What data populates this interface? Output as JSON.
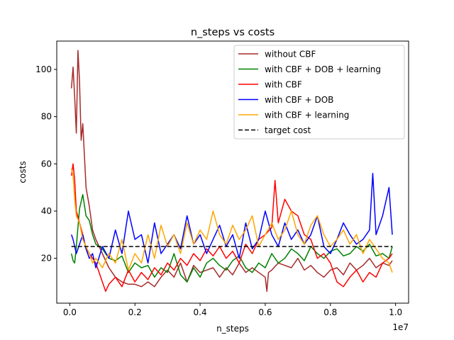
{
  "chart_data": {
    "type": "line",
    "title": "n_steps vs costs",
    "xlabel": "n_steps",
    "ylabel": "costs",
    "x_offset_text": "1e7",
    "xlim": [
      -0.04,
      1.04
    ],
    "ylim": [
      1,
      112
    ],
    "x_ticks": [
      0.0,
      0.2,
      0.4,
      0.6,
      0.8,
      1.0
    ],
    "x_tick_labels": [
      "0.0",
      "0.2",
      "0.4",
      "0.6",
      "0.8",
      "1.0"
    ],
    "y_ticks": [
      20,
      40,
      60,
      80,
      100
    ],
    "y_tick_labels": [
      "20",
      "40",
      "60",
      "80",
      "100"
    ],
    "grid": false,
    "legend_position": "top-right",
    "series": [
      {
        "name": "without CBF",
        "color": "#a52a2a",
        "x": [
          0.005,
          0.01,
          0.015,
          0.02,
          0.025,
          0.03,
          0.035,
          0.04,
          0.05,
          0.06,
          0.07,
          0.08,
          0.1,
          0.12,
          0.14,
          0.16,
          0.18,
          0.2,
          0.22,
          0.24,
          0.26,
          0.28,
          0.3,
          0.32,
          0.34,
          0.36,
          0.38,
          0.4,
          0.42,
          0.44,
          0.46,
          0.48,
          0.5,
          0.52,
          0.54,
          0.56,
          0.58,
          0.6,
          0.605,
          0.61,
          0.62,
          0.64,
          0.66,
          0.68,
          0.7,
          0.72,
          0.74,
          0.76,
          0.78,
          0.8,
          0.82,
          0.84,
          0.86,
          0.88,
          0.9,
          0.92,
          0.94,
          0.96,
          0.98,
          0.99
        ],
        "y": [
          92,
          101,
          88,
          73,
          108,
          95,
          70,
          77,
          50,
          42,
          32,
          28,
          22,
          16,
          12,
          10,
          9,
          9,
          8,
          10,
          8,
          12,
          15,
          12,
          18,
          10,
          17,
          14,
          15,
          16,
          12,
          16,
          13,
          18,
          14,
          16,
          14,
          12,
          6,
          14,
          15,
          18,
          17,
          16,
          20,
          15,
          17,
          14,
          12,
          15,
          16,
          13,
          18,
          15,
          17,
          20,
          16,
          18,
          17,
          19
        ]
      },
      {
        "name": "with CBF + DOB + learning",
        "color": "#008000",
        "x": [
          0.005,
          0.01,
          0.015,
          0.02,
          0.03,
          0.04,
          0.05,
          0.06,
          0.07,
          0.08,
          0.1,
          0.12,
          0.14,
          0.16,
          0.18,
          0.2,
          0.22,
          0.24,
          0.26,
          0.28,
          0.3,
          0.32,
          0.34,
          0.36,
          0.38,
          0.4,
          0.42,
          0.44,
          0.46,
          0.48,
          0.5,
          0.52,
          0.54,
          0.56,
          0.58,
          0.6,
          0.62,
          0.64,
          0.66,
          0.68,
          0.7,
          0.72,
          0.74,
          0.76,
          0.78,
          0.8,
          0.82,
          0.84,
          0.86,
          0.88,
          0.9,
          0.92,
          0.94,
          0.96,
          0.98,
          0.99
        ],
        "y": [
          22,
          19,
          18,
          25,
          41,
          47,
          38,
          36,
          30,
          26,
          24,
          20,
          19,
          21,
          14,
          18,
          16,
          17,
          12,
          16,
          14,
          22,
          13,
          10,
          16,
          12,
          18,
          20,
          17,
          15,
          19,
          21,
          16,
          14,
          18,
          16,
          22,
          18,
          20,
          24,
          22,
          19,
          25,
          22,
          20,
          23,
          24,
          21,
          22,
          25,
          23,
          26,
          21,
          22,
          20,
          25
        ]
      },
      {
        "name": "with CBF",
        "color": "#ff0000",
        "x": [
          0.005,
          0.01,
          0.015,
          0.02,
          0.03,
          0.04,
          0.05,
          0.06,
          0.07,
          0.08,
          0.1,
          0.11,
          0.12,
          0.14,
          0.16,
          0.18,
          0.2,
          0.22,
          0.24,
          0.26,
          0.28,
          0.3,
          0.32,
          0.34,
          0.36,
          0.38,
          0.4,
          0.42,
          0.44,
          0.46,
          0.48,
          0.5,
          0.52,
          0.54,
          0.56,
          0.58,
          0.6,
          0.62,
          0.63,
          0.64,
          0.66,
          0.68,
          0.7,
          0.72,
          0.74,
          0.76,
          0.78,
          0.8,
          0.82,
          0.84,
          0.86,
          0.88,
          0.9,
          0.92,
          0.94,
          0.96,
          0.98,
          0.99
        ],
        "y": [
          55,
          60,
          53,
          40,
          35,
          30,
          24,
          22,
          20,
          18,
          10,
          6,
          9,
          12,
          8,
          15,
          10,
          14,
          11,
          16,
          13,
          18,
          15,
          20,
          17,
          22,
          19,
          24,
          21,
          25,
          20,
          23,
          18,
          26,
          22,
          28,
          30,
          33,
          53,
          35,
          45,
          40,
          38,
          30,
          28,
          20,
          22,
          18,
          10,
          8,
          12,
          15,
          10,
          14,
          12,
          18,
          20,
          22
        ]
      },
      {
        "name": "with CBF + DOB",
        "color": "#0000ff",
        "x": [
          0.005,
          0.01,
          0.015,
          0.02,
          0.03,
          0.04,
          0.05,
          0.06,
          0.07,
          0.08,
          0.1,
          0.12,
          0.14,
          0.16,
          0.18,
          0.2,
          0.22,
          0.24,
          0.26,
          0.28,
          0.3,
          0.32,
          0.34,
          0.36,
          0.38,
          0.4,
          0.42,
          0.44,
          0.46,
          0.48,
          0.5,
          0.52,
          0.54,
          0.56,
          0.58,
          0.6,
          0.62,
          0.64,
          0.66,
          0.68,
          0.7,
          0.72,
          0.74,
          0.76,
          0.78,
          0.8,
          0.82,
          0.84,
          0.86,
          0.88,
          0.9,
          0.92,
          0.93,
          0.94,
          0.96,
          0.98,
          0.99
        ],
        "y": [
          30,
          28,
          25,
          22,
          26,
          30,
          24,
          20,
          22,
          16,
          25,
          20,
          32,
          22,
          40,
          28,
          30,
          18,
          35,
          22,
          26,
          30,
          24,
          38,
          26,
          30,
          22,
          28,
          34,
          25,
          30,
          20,
          35,
          24,
          28,
          40,
          30,
          25,
          35,
          28,
          32,
          26,
          30,
          38,
          25,
          22,
          28,
          35,
          30,
          26,
          28,
          32,
          56,
          30,
          38,
          50,
          30
        ]
      },
      {
        "name": "with CBF + learning",
        "color": "#ffa500",
        "x": [
          0.005,
          0.01,
          0.015,
          0.02,
          0.03,
          0.04,
          0.05,
          0.06,
          0.07,
          0.08,
          0.1,
          0.12,
          0.14,
          0.16,
          0.18,
          0.2,
          0.22,
          0.24,
          0.26,
          0.28,
          0.3,
          0.32,
          0.34,
          0.36,
          0.38,
          0.4,
          0.42,
          0.44,
          0.46,
          0.48,
          0.5,
          0.52,
          0.54,
          0.56,
          0.58,
          0.6,
          0.62,
          0.64,
          0.66,
          0.68,
          0.7,
          0.72,
          0.74,
          0.76,
          0.78,
          0.8,
          0.82,
          0.84,
          0.86,
          0.88,
          0.9,
          0.92,
          0.94,
          0.96,
          0.98,
          0.99
        ],
        "y": [
          58,
          55,
          45,
          38,
          35,
          28,
          25,
          22,
          18,
          20,
          16,
          22,
          18,
          28,
          15,
          22,
          18,
          30,
          20,
          34,
          25,
          30,
          22,
          35,
          26,
          32,
          28,
          40,
          30,
          26,
          34,
          28,
          32,
          38,
          25,
          30,
          35,
          28,
          32,
          40,
          30,
          26,
          34,
          38,
          30,
          25,
          28,
          32,
          26,
          30,
          22,
          28,
          24,
          20,
          18,
          14
        ]
      },
      {
        "name": "target cost",
        "color": "#000000",
        "dashed": true,
        "x": [
          0.005,
          0.99
        ],
        "y": [
          25,
          25
        ]
      }
    ]
  }
}
